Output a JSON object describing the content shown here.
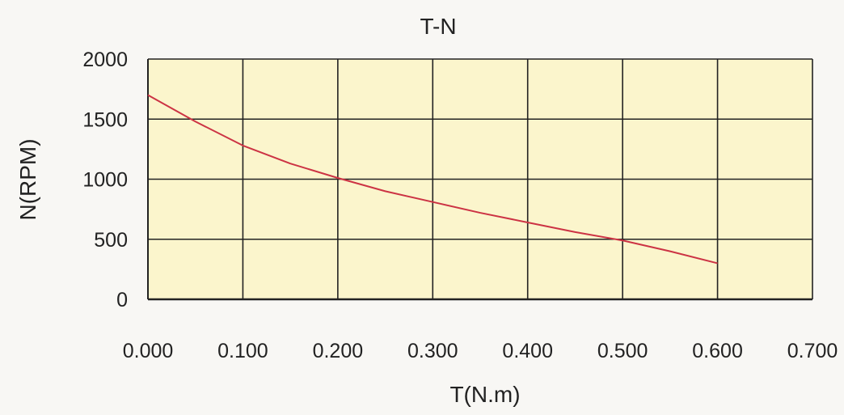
{
  "chart_data": {
    "type": "line",
    "title": "T-N",
    "xlabel": "T(N.m)",
    "ylabel": "N(RPM)",
    "xlim": [
      0.0,
      0.7
    ],
    "ylim": [
      0,
      2000
    ],
    "x_ticks": [
      "0.000",
      "0.100",
      "0.200",
      "0.300",
      "0.400",
      "0.500",
      "0.600",
      "0.700"
    ],
    "y_ticks": [
      "0",
      "500",
      "1000",
      "1500",
      "2000"
    ],
    "grid": true,
    "legend": "none",
    "series": [
      {
        "x": [
          0.0,
          0.05,
          0.1,
          0.15,
          0.2,
          0.25,
          0.3,
          0.35,
          0.4,
          0.45,
          0.5,
          0.55,
          0.6
        ],
        "y": [
          1700,
          1480,
          1280,
          1130,
          1010,
          900,
          810,
          720,
          640,
          560,
          490,
          400,
          300
        ],
        "color": "#cc3344"
      }
    ],
    "plot_background": "#fbf5cc",
    "grid_color": "#222222"
  }
}
